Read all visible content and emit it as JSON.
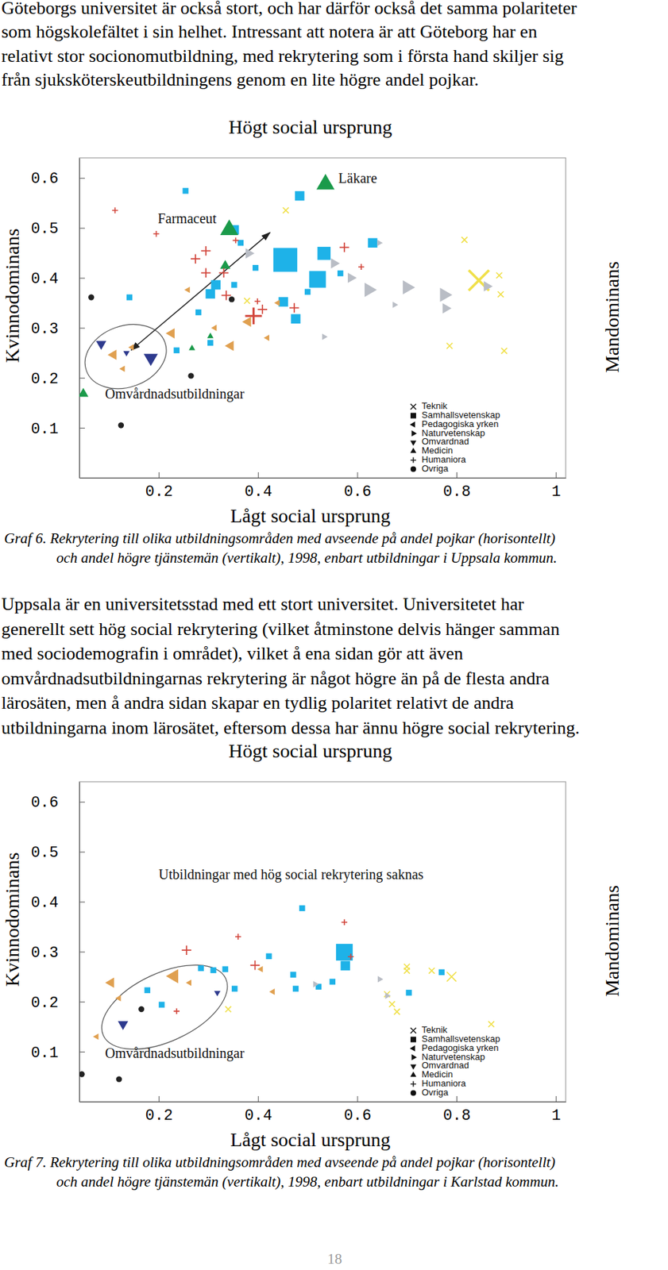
{
  "page": {
    "paragraphs": [
      {
        "lines": [
          "Göteborgs universitet är också stort, och har därför också det samma polariteter",
          "som högskolefältet i sin helhet. Intressant att notera är att Göteborg har en",
          "relativt stor socionomutbildning, med rekrytering som i första hand skiljer sig",
          "från sjuksköterskeutbildningens genom en lite högre andel pojkar."
        ]
      },
      {
        "lines": [
          "Uppsala är en universitetsstad med ett stort universitet. Universitetet har",
          "generellt sett hög social rekrytering (vilket åtminstone delvis hänger samman",
          "med sociodemografin i området), vilket å ena sidan gör att även",
          "omvårdnadsutbildningarnas rekrytering är något högre än på de flesta andra",
          "lärosäten, men å andra sidan skapar en tydlig polaritet relativt de andra",
          "utbildningarna inom lärosätet, eftersom dessa har ännu högre social rekrytering."
        ]
      }
    ],
    "page_number": 18
  },
  "chart_data": [
    {
      "type": "scatter",
      "title": "Högt social ursprung",
      "xlabel": "Lågt social ursprung",
      "ylabel": "Kvinnodominans",
      "y2label": "Mandominans",
      "caption": [
        "Graf 6. Rekrytering till olika utbildningsområden med avseende på andel pojkar (horisontellt)",
        "och andel högre tjänstemän (vertikalt), 1998, enbart utbildningar i Uppsala kommun."
      ],
      "annotations": [
        {
          "text": "Läkare",
          "x": 0.562,
          "y": 0.596
        },
        {
          "text": "Farmaceut",
          "x": 0.198,
          "y": 0.515
        },
        {
          "text": "Omvårdnadsutbildningar",
          "x": 0.092,
          "y": 0.165
        }
      ],
      "xlim": [
        0.04,
        1.02
      ],
      "ylim": [
        0,
        0.64
      ],
      "xticks": [
        0.2,
        0.4,
        0.6,
        0.8,
        1
      ],
      "yticks": [
        0.1,
        0.2,
        0.3,
        0.4,
        0.5,
        0.6
      ],
      "legend": "lower right",
      "series": [
        {
          "name": "Teknik",
          "color": "#f0e04a",
          "marker": "x",
          "x": [
            0.845,
            0.816,
            0.896,
            0.886,
            0.889,
            0.786,
            0.456,
            0.378
          ],
          "y": [
            0.395,
            0.476,
            0.254,
            0.405,
            0.367,
            0.264,
            0.535,
            0.354
          ],
          "sizes": [
            5,
            1,
            1,
            1,
            1,
            1,
            1,
            1
          ]
        },
        {
          "name": "Samhallsvetenskap",
          "color": "#1eb2e8",
          "marker": "square",
          "x": [
            0.455,
            0.52,
            0.533,
            0.451,
            0.484,
            0.254,
            0.352,
            0.304,
            0.315,
            0.352,
            0.5,
            0.476,
            0.631,
            0.566,
            0.28,
            0.304,
            0.365,
            0.141,
            0.236,
            0.395
          ],
          "y": [
            0.436,
            0.397,
            0.449,
            0.352,
            0.564,
            0.574,
            0.496,
            0.368,
            0.386,
            0.386,
            0.372,
            0.318,
            0.47,
            0.409,
            0.331,
            0.27,
            0.47,
            0.361,
            0.255,
            0.42
          ],
          "sizes": [
            6,
            4,
            3,
            2,
            2,
            1,
            2,
            2,
            2,
            1,
            1,
            2,
            2,
            1,
            1,
            1,
            1,
            1,
            1,
            1
          ]
        },
        {
          "name": "Pedagogiska yrken",
          "color": "#e0a050",
          "marker": "triangle-left",
          "x": [
            0.226,
            0.109,
            0.128,
            0.146,
            0.345,
            0.38,
            0.419,
            0.259,
            0.313,
            0.44
          ],
          "y": [
            0.289,
            0.246,
            0.218,
            0.261,
            0.264,
            0.312,
            0.28,
            0.376,
            0.3,
            0.35
          ],
          "sizes": [
            2,
            2,
            1,
            1,
            2,
            2,
            1,
            1,
            1,
            1
          ]
        },
        {
          "name": "Naturvetenskap",
          "color": "#b9bdc5",
          "marker": "triangle-right",
          "x": [
            0.381,
            0.623,
            0.7,
            0.775,
            0.778,
            0.553,
            0.587,
            0.675,
            0.861,
            0.533,
            0.644
          ],
          "y": [
            0.449,
            0.376,
            0.381,
            0.366,
            0.339,
            0.429,
            0.4,
            0.346,
            0.383,
            0.282,
            0.47
          ],
          "sizes": [
            2,
            3,
            3,
            3,
            2,
            2,
            2,
            1,
            2,
            1,
            1
          ]
        },
        {
          "name": "Omvardnad",
          "color": "#2e3a8e",
          "marker": "triangle-down",
          "x": [
            0.084,
            0.184,
            0.135
          ],
          "y": [
            0.268,
            0.24,
            0.25
          ],
          "sizes": [
            2,
            3,
            1
          ]
        },
        {
          "name": "Medicin",
          "color": "#1a9a4a",
          "marker": "triangle-up",
          "x": [
            0.536,
            0.342,
            0.334,
            0.048,
            0.267,
            0.304
          ],
          "y": [
            0.587,
            0.496,
            0.424,
            0.168,
            0.259,
            0.283
          ],
          "sizes": [
            4,
            4,
            2,
            2,
            1,
            1
          ]
        },
        {
          "name": "Humaniora",
          "color": "#d2463c",
          "marker": "plus",
          "x": [
            0.195,
            0.274,
            0.295,
            0.295,
            0.331,
            0.336,
            0.391,
            0.409,
            0.399,
            0.473,
            0.574,
            0.608,
            0.355,
            0.112
          ],
          "y": [
            0.488,
            0.438,
            0.454,
            0.41,
            0.41,
            0.365,
            0.324,
            0.337,
            0.353,
            0.34,
            0.461,
            0.422,
            0.475,
            0.535
          ],
          "sizes": [
            1,
            2,
            2,
            2,
            2,
            2,
            4,
            2,
            1,
            2,
            2,
            1,
            1,
            1
          ]
        },
        {
          "name": "Ovriga",
          "color": "#222222",
          "marker": "circle",
          "x": [
            0.064,
            0.124,
            0.347,
            0.265
          ],
          "y": [
            0.361,
            0.105,
            0.357,
            0.204
          ],
          "sizes": [
            1,
            1,
            1,
            1
          ]
        }
      ]
    },
    {
      "type": "scatter",
      "title": "Högt social ursprung",
      "xlabel": "Lågt social ursprung",
      "ylabel": "Kvinnodominans",
      "y2label": "Mandominans",
      "caption": [
        "Graf 7. Rekrytering till olika utbildningsområden med avseende på andel pojkar (horisontellt)",
        "och andel högre tjänstemän (vertikalt), 1998, enbart utbildningar i Karlstad kommun."
      ],
      "annotations": [
        {
          "text": "Utbildningar med hög social rekrytering saknas",
          "x": 0.2,
          "y": 0.452
        },
        {
          "text": "Omvårdnadsutbildningar",
          "x": 0.092,
          "y": 0.094
        }
      ],
      "xlim": [
        0.04,
        1.02
      ],
      "ylim": [
        0,
        0.64
      ],
      "xticks": [
        0.2,
        0.4,
        0.6,
        0.8,
        1
      ],
      "yticks": [
        0.1,
        0.2,
        0.3,
        0.4,
        0.5,
        0.6
      ],
      "legend": "lower right",
      "series": [
        {
          "name": "Teknik",
          "color": "#f0e04a",
          "marker": "x",
          "x": [
            0.7,
            0.7,
            0.79,
            0.87,
            0.66,
            0.67,
            0.68,
            0.75,
            0.34
          ],
          "y": [
            0.27,
            0.262,
            0.25,
            0.155,
            0.215,
            0.195,
            0.18,
            0.262,
            0.185
          ],
          "sizes": [
            1,
            1,
            2,
            1,
            1,
            1,
            1,
            1,
            1
          ]
        },
        {
          "name": "Samhallsvetenskap",
          "color": "#1eb2e8",
          "marker": "square",
          "x": [
            0.574,
            0.576,
            0.522,
            0.476,
            0.422,
            0.489,
            0.353,
            0.285,
            0.177,
            0.206,
            0.334,
            0.471,
            0.704,
            0.77,
            0.55,
            0.31
          ],
          "y": [
            0.299,
            0.272,
            0.23,
            0.226,
            0.291,
            0.387,
            0.226,
            0.267,
            0.223,
            0.194,
            0.265,
            0.254,
            0.218,
            0.259,
            0.24,
            0.263
          ],
          "sizes": [
            4,
            2,
            1,
            1,
            1,
            1,
            1,
            1,
            1,
            1,
            1,
            1,
            1,
            1,
            1,
            1
          ]
        },
        {
          "name": "Pedagogiska yrken",
          "color": "#e0a050",
          "marker": "triangle-left",
          "x": [
            0.075,
            0.104,
            0.12,
            0.231,
            0.406,
            0.262,
            0.43
          ],
          "y": [
            0.13,
            0.238,
            0.207,
            0.251,
            0.265,
            0.238,
            0.22
          ],
          "sizes": [
            1,
            2,
            1,
            3,
            1,
            1,
            1
          ]
        },
        {
          "name": "Naturvetenskap",
          "color": "#b9bdc5",
          "marker": "triangle-right",
          "x": [
            0.645,
            0.515,
            0.66
          ],
          "y": [
            0.245,
            0.235,
            0.212
          ],
          "sizes": [
            1,
            1,
            1
          ]
        },
        {
          "name": "Omvardnad",
          "color": "#2e3a8e",
          "marker": "triangle-down",
          "x": [
            0.128,
            0.318
          ],
          "y": [
            0.155,
            0.218
          ],
          "sizes": [
            2,
            1
          ]
        },
        {
          "name": "Medicin",
          "color": "#1a9a4a",
          "marker": "triangle-up",
          "x": [],
          "y": [],
          "sizes": []
        },
        {
          "name": "Humaniora",
          "color": "#d2463c",
          "marker": "plus",
          "x": [
            0.256,
            0.394,
            0.236,
            0.574,
            0.587,
            0.36
          ],
          "y": [
            0.303,
            0.273,
            0.181,
            0.359,
            0.29,
            0.33
          ],
          "sizes": [
            2,
            2,
            1,
            1,
            1,
            1
          ]
        },
        {
          "name": "Ovriga",
          "color": "#222222",
          "marker": "circle",
          "x": [
            0.045,
            0.165,
            0.12
          ],
          "y": [
            0.055,
            0.185,
            0.045
          ],
          "sizes": [
            1,
            1,
            1
          ]
        }
      ]
    }
  ]
}
